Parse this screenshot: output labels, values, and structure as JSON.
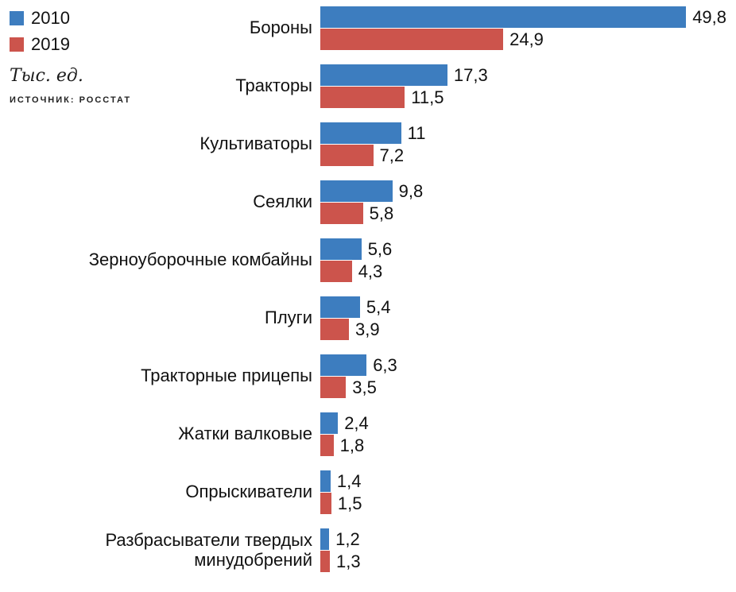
{
  "chart_data": {
    "type": "bar",
    "orientation": "horizontal",
    "title": "",
    "xlabel": "",
    "ylabel": "",
    "unit": "Тыс. ед.",
    "source": "ИСТОЧНИК: РОССТАТ",
    "legend_position": "top-left",
    "grid": false,
    "value_labels": true,
    "xlim": [
      0,
      50
    ],
    "categories": [
      "Бороны",
      "Тракторы",
      "Культиваторы",
      "Сеялки",
      "Зерноуборочные комбайны",
      "Плуги",
      "Тракторные прицепы",
      "Жатки валковые",
      "Опрыскиватели",
      "Разбрасыватели твердых минудобрений"
    ],
    "series": [
      {
        "name": "2010",
        "color": "#3d7dbf",
        "values": [
          49.8,
          17.3,
          11,
          9.8,
          5.6,
          5.4,
          6.3,
          2.4,
          1.4,
          1.2
        ],
        "labels": [
          "49,8",
          "17,3",
          "11",
          "9,8",
          "5,6",
          "5,4",
          "6,3",
          "2,4",
          "1,4",
          "1,2"
        ]
      },
      {
        "name": "2019",
        "color": "#cc544c",
        "values": [
          24.9,
          11.5,
          7.2,
          5.8,
          4.3,
          3.9,
          3.5,
          1.8,
          1.5,
          1.3
        ],
        "labels": [
          "24,9",
          "11,5",
          "7,2",
          "5,8",
          "4,3",
          "3,9",
          "3,5",
          "1,8",
          "1,5",
          "1,3"
        ]
      }
    ]
  }
}
